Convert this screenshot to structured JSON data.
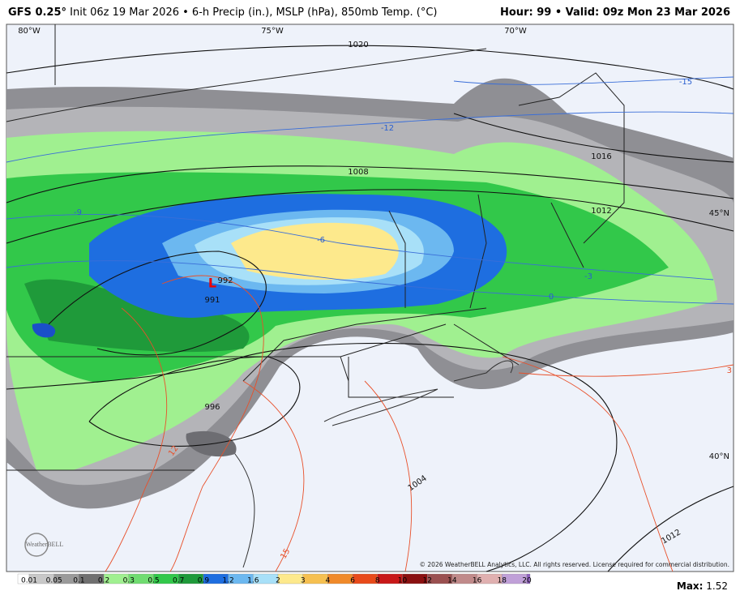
{
  "header": {
    "model": "GFS 0.25°",
    "description": "Init 06z 19 Mar 2026 • 6-h Precip (in.), MSLP (hPa), 850mb Temp. (°C)",
    "valid": "Hour: 99 • Valid: 09z Mon 23 Mar 2026"
  },
  "map": {
    "lon_labels": [
      "80°W",
      "75°W",
      "70°W"
    ],
    "lat_labels": [
      "45°N",
      "40°N"
    ],
    "isobar_labels": [
      "1020",
      "1016",
      "1012",
      "1008",
      "1004",
      "996",
      "992",
      "991",
      "1012"
    ],
    "low": "L",
    "temp_labels": [
      "-15",
      "-12",
      "-9",
      "-6",
      "-3",
      "0",
      "3",
      "12",
      "15"
    ],
    "attribution": "© 2026 WeatherBELL Analytics, LLC. All rights reserved. License required for commercial distribution.",
    "logo": "WeatherBELL"
  },
  "colorbar": {
    "labels": [
      0.01,
      0.05,
      0.1,
      0.2,
      0.3,
      0.5,
      0.7,
      0.9,
      1.2,
      1.6,
      2,
      3,
      4,
      6,
      8,
      10,
      12,
      14,
      16,
      18,
      20
    ]
  },
  "footer": {
    "max_label": "Max:",
    "max": "1.52"
  }
}
